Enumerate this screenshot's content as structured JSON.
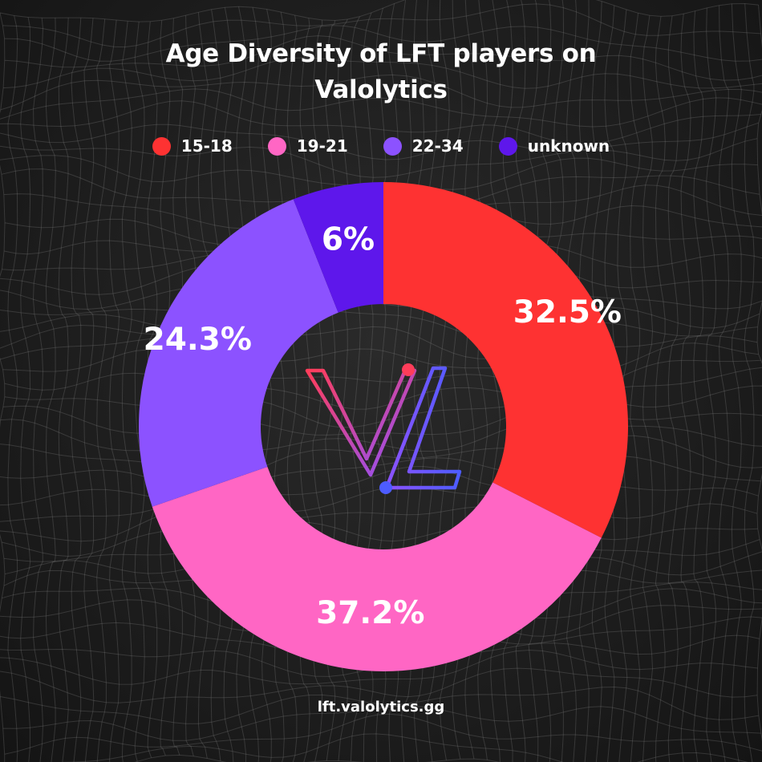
{
  "chart_data": {
    "type": "pie",
    "title_lines": [
      "Age Diversity of LFT players on",
      "Valolytics"
    ],
    "categories": [
      "15-18",
      "19-21",
      "22-34",
      "unknown"
    ],
    "values": [
      32.5,
      37.2,
      24.3,
      6
    ],
    "value_labels": [
      "32.5%",
      "37.2%",
      "24.3%",
      "6%"
    ],
    "colors": [
      "#fe3232",
      "#ff66c4",
      "#8c52ff",
      "#5e17eb"
    ],
    "donut": true,
    "legend_position": "top"
  },
  "logo": {
    "name": "valolytics-logo-icon",
    "gradient_colors": [
      "#ff3d5a",
      "#8c52ff",
      "#4d5cff"
    ]
  },
  "footer": {
    "url": "lft.valolytics.gg"
  }
}
